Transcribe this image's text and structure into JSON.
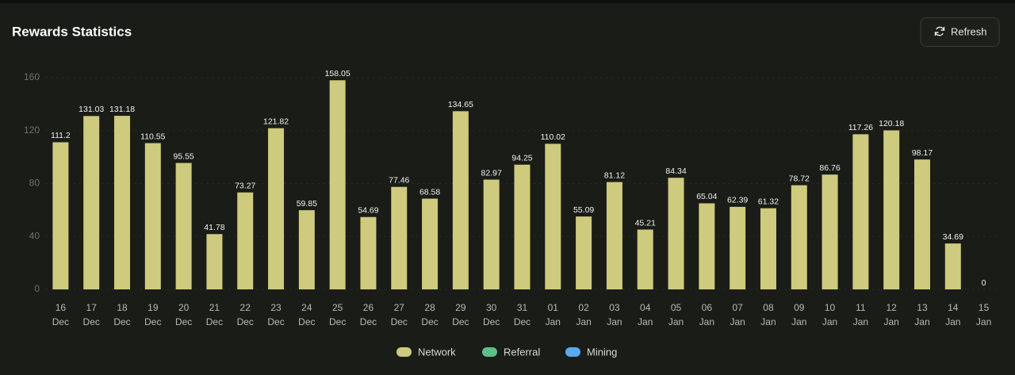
{
  "header": {
    "title": "Rewards Statistics",
    "button": "Refresh"
  },
  "chart_data": {
    "type": "bar",
    "categories": [
      "16",
      "17",
      "18",
      "19",
      "20",
      "21",
      "22",
      "23",
      "24",
      "25",
      "26",
      "27",
      "28",
      "29",
      "30",
      "31",
      "01",
      "02",
      "03",
      "04",
      "05",
      "06",
      "07",
      "08",
      "09",
      "10",
      "11",
      "12",
      "13",
      "14",
      "15"
    ],
    "category_sublabels": [
      "Dec",
      "Dec",
      "Dec",
      "Dec",
      "Dec",
      "Dec",
      "Dec",
      "Dec",
      "Dec",
      "Dec",
      "Dec",
      "Dec",
      "Dec",
      "Dec",
      "Dec",
      "Dec",
      "Jan",
      "Jan",
      "Jan",
      "Jan",
      "Jan",
      "Jan",
      "Jan",
      "Jan",
      "Jan",
      "Jan",
      "Jan",
      "Jan",
      "Jan",
      "Jan",
      "Jan"
    ],
    "series": [
      {
        "name": "Network",
        "color": "#cfcb7e",
        "values": [
          111.2,
          131.03,
          131.18,
          110.55,
          95.55,
          41.78,
          73.27,
          121.82,
          59.85,
          158.05,
          54.69,
          77.46,
          68.58,
          134.65,
          82.97,
          94.25,
          110.02,
          55.09,
          81.12,
          45.21,
          84.34,
          65.04,
          62.39,
          61.32,
          78.72,
          86.76,
          117.26,
          120.18,
          98.17,
          34.69,
          0
        ]
      },
      {
        "name": "Referral",
        "color": "#5cbf88"
      },
      {
        "name": "Mining",
        "color": "#5aa7f2"
      }
    ],
    "ylim": [
      0,
      160
    ],
    "yticks": [
      0,
      40,
      80,
      120,
      160
    ],
    "grid": true,
    "legend": "bottom"
  }
}
